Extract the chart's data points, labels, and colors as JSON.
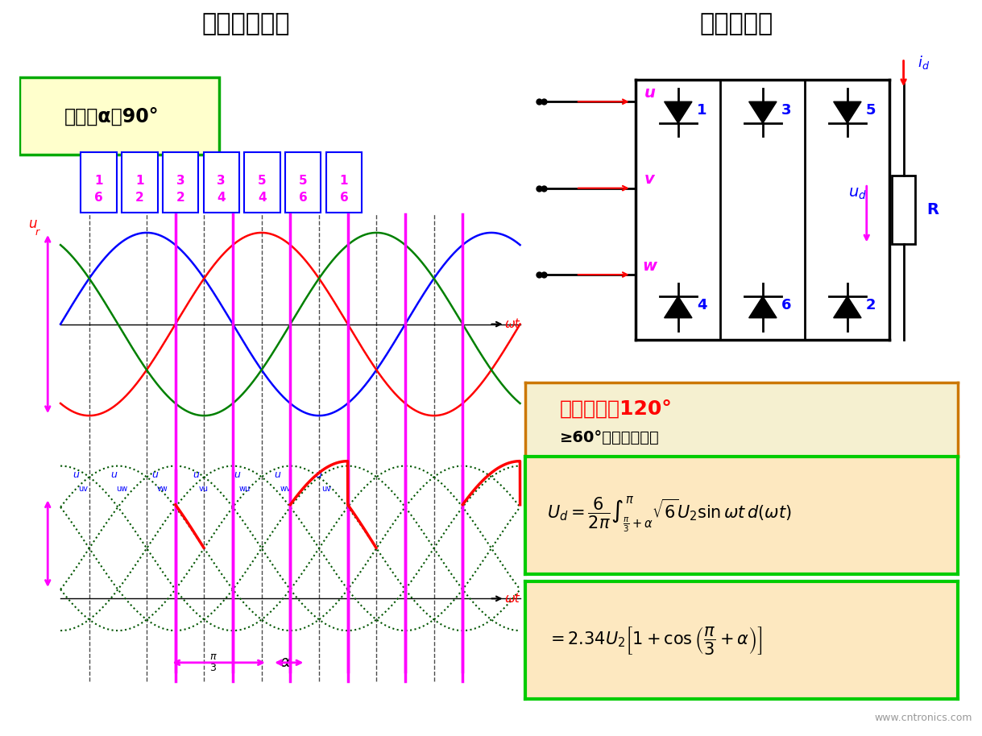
{
  "title_left": "三相桥式全控",
  "title_right": "电阻性负载",
  "title_bg": "#c8c8e8",
  "control_angle_text": "控制角α＝90°",
  "phase_labels": [
    "1\n6",
    "1\n2",
    "3\n2",
    "3\n4",
    "5\n4",
    "5\n6",
    "1\n6"
  ],
  "waveform_colors": [
    "blue",
    "red",
    "green"
  ],
  "segment_colors": [
    "#ff00ff",
    "#ff00ff",
    "#ff00ff",
    "#ff00ff",
    "#ff00ff",
    "#ff00ff",
    "#ff00ff"
  ],
  "background_color": "#ffffff",
  "formula1": "U_d = \\frac{6}{2\\pi}\\int_{\\frac{\\pi}{3}+\\alpha}^{\\pi} \\sqrt{6}U_2 \\sin\\omega t\\, d(\\omega t)",
  "formula2": "= 2.34U_2\\left[1+\\cos\\left(\\frac{\\pi}{3}+\\alpha\\right)\\right]",
  "phase_range_text": "移相范围为120°",
  "phase_range_subtext": "≥60°时，电流断续"
}
